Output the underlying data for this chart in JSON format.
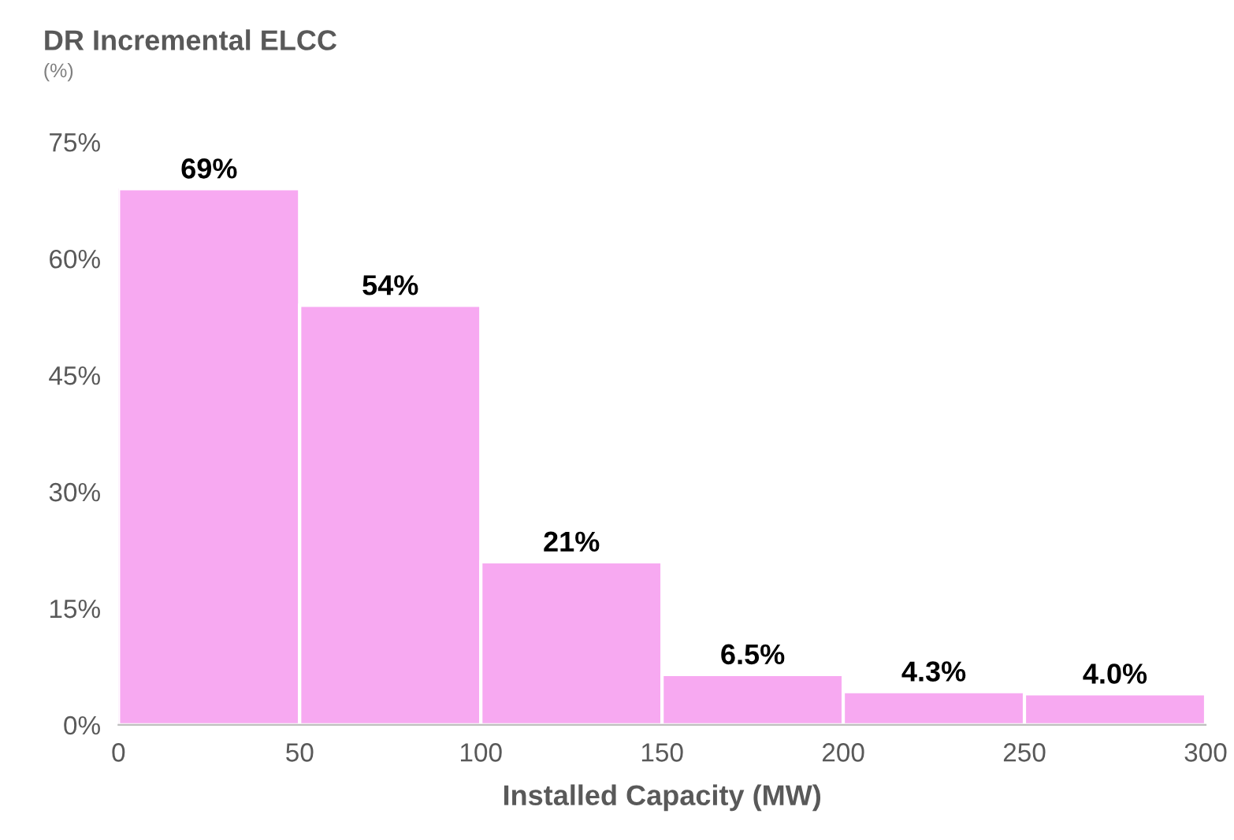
{
  "chart_data": {
    "type": "histogram",
    "title": "DR Incremental ELCC",
    "subtitle": "(%)",
    "xlabel": "Installed Capacity (MW)",
    "bins": [
      0,
      50,
      100,
      150,
      200,
      250,
      300
    ],
    "values": [
      69,
      54,
      21,
      6.5,
      4.3,
      4.0
    ],
    "value_labels": [
      "69%",
      "54%",
      "21%",
      "6.5%",
      "4.3%",
      "4.0%"
    ],
    "color": "#f7a9f1",
    "xlim": [
      0,
      300
    ],
    "xticks": [
      0,
      50,
      100,
      150,
      200,
      250,
      300
    ],
    "ylim": [
      0,
      75
    ],
    "yticks": [
      {
        "value": 0,
        "label": "0%"
      },
      {
        "value": 15,
        "label": "15%"
      },
      {
        "value": 30,
        "label": "30%"
      },
      {
        "value": 45,
        "label": "45%"
      },
      {
        "value": 60,
        "label": "60%"
      },
      {
        "value": 75,
        "label": "75%"
      }
    ],
    "grid": false,
    "legend": false
  }
}
